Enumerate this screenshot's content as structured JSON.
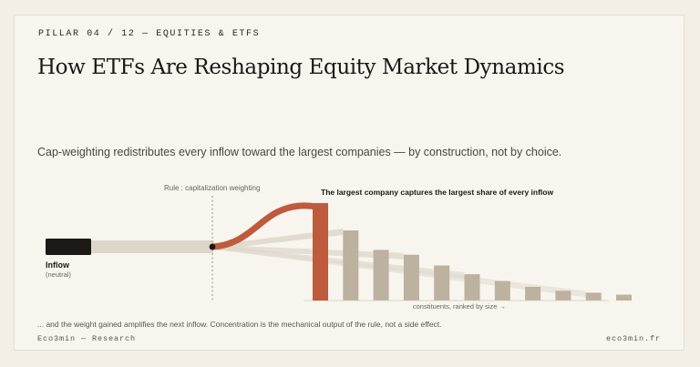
{
  "header": {
    "kicker": "PILLAR 04 / 12 — EQUITIES & ETFS",
    "title": "How ETFs Are Reshaping Equity Market Dynamics",
    "subtitle": "Cap-weighting redistributes every inflow toward the largest companies — by construction, not by choice."
  },
  "diagram": {
    "rule_label": "Rule : capitalization weighting",
    "callout": "The largest company captures the largest share of every inflow",
    "inflow_label": "Inflow",
    "inflow_sublabel": "(neutral)",
    "axis_label": "constituents, ranked by size →",
    "constituents": [
      1.0,
      0.72,
      0.52,
      0.47,
      0.36,
      0.27,
      0.2,
      0.14,
      0.1,
      0.08,
      0.06
    ]
  },
  "footnote": "... and the weight gained amplifies the next inflow. Concentration is the mechanical output of the rule, not a side effect.",
  "footer": {
    "left": "Eco3min — Research",
    "right": "eco3min.fr"
  },
  "colors": {
    "accent": "#bf5b3d",
    "bar": "#bdb19f",
    "stream": "#ddd6ca",
    "inflow_block": "#1b1916"
  }
}
